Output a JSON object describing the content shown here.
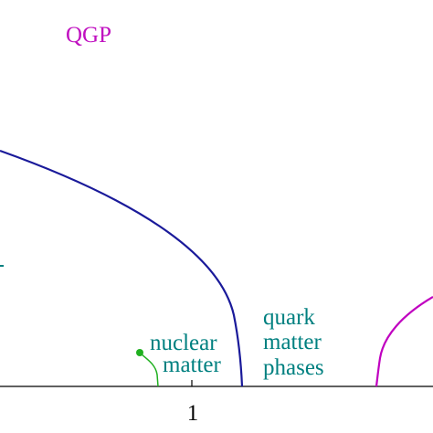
{
  "labels": {
    "qgp": "QGP",
    "nuclear": [
      "nuclear",
      "matter"
    ],
    "quark": [
      "quark",
      "matter",
      "phases"
    ]
  },
  "axis": {
    "ticks": [
      "1"
    ]
  }
}
